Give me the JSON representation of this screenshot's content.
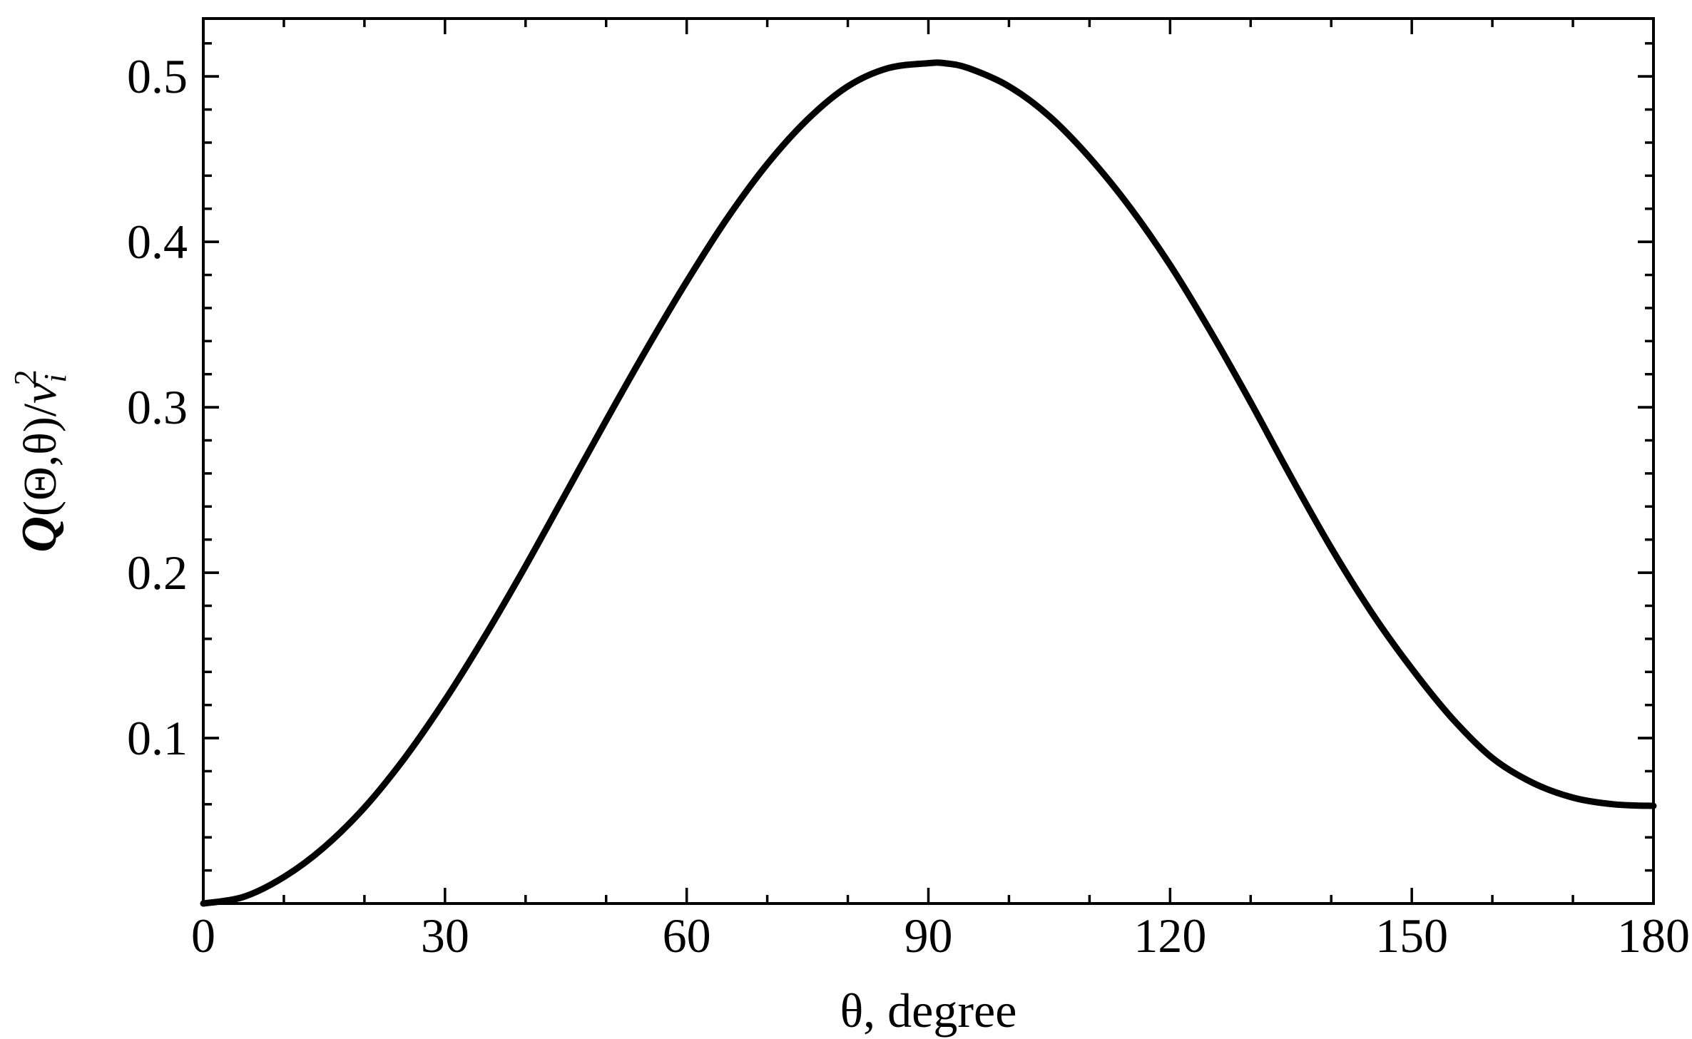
{
  "chart_data": {
    "type": "line",
    "title": "",
    "xlabel": "θ, degree",
    "ylabel": {
      "parts": [
        "Q",
        "(Θ,θ)/",
        "v",
        "i",
        "2"
      ]
    },
    "xlim": [
      0,
      180
    ],
    "ylim": [
      0,
      0.535
    ],
    "x_ticks": [
      0,
      30,
      60,
      90,
      120,
      150,
      180
    ],
    "x_tick_labels": [
      "0",
      "30",
      "60",
      "90",
      "120",
      "150",
      "180"
    ],
    "x_minor_step": 10,
    "y_ticks": [
      0.1,
      0.2,
      0.3,
      0.4,
      0.5
    ],
    "y_tick_labels": [
      "0.1",
      "0.2",
      "0.3",
      "0.4",
      "0.5"
    ],
    "y_minor_step": 0.02,
    "grid": false,
    "series": [
      {
        "color": "#000000",
        "x": [
          0,
          5,
          10,
          15,
          20,
          25,
          30,
          35,
          40,
          45,
          50,
          55,
          60,
          65,
          70,
          75,
          80,
          85,
          90,
          92,
          95,
          100,
          105,
          110,
          115,
          120,
          125,
          130,
          135,
          140,
          145,
          150,
          155,
          160,
          165,
          170,
          175,
          180
        ],
        "y": [
          0.0,
          0.004,
          0.016,
          0.034,
          0.058,
          0.088,
          0.123,
          0.162,
          0.204,
          0.248,
          0.292,
          0.335,
          0.376,
          0.414,
          0.447,
          0.474,
          0.494,
          0.505,
          0.508,
          0.508,
          0.505,
          0.494,
          0.476,
          0.451,
          0.421,
          0.386,
          0.346,
          0.303,
          0.258,
          0.215,
          0.176,
          0.142,
          0.112,
          0.088,
          0.073,
          0.064,
          0.06,
          0.059
        ]
      }
    ]
  }
}
